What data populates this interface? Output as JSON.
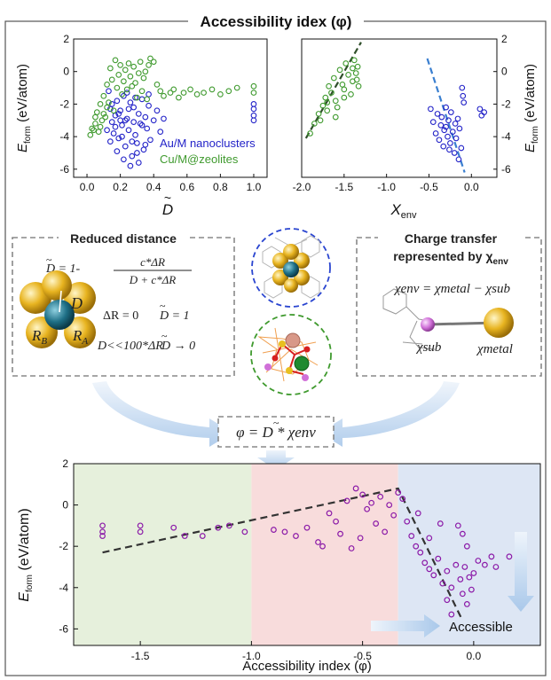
{
  "title": "Accessibility idex (φ)",
  "top_left": {
    "ylabel": "E",
    "ylabel_sub": "form",
    "ylabel_unit": "(eV/atom)",
    "xlabel": "D",
    "xticks": [
      "0.0",
      "0.2",
      "0.4",
      "0.6",
      "0.8",
      "1.0"
    ],
    "yticks": [
      "2",
      "0",
      "-2",
      "-4",
      "-6"
    ],
    "legend_au": "Au/M nanoclusters",
    "legend_cu": "Cu/M@zeolites"
  },
  "top_right": {
    "ylabel": "E",
    "ylabel_sub": "form",
    "ylabel_unit": "(eV/atom)",
    "xlabel": "X",
    "xlabel_sub": "env",
    "xticks": [
      "-2.0",
      "-1.5",
      "-1.0",
      "-0.5",
      "0.0"
    ],
    "yticks": [
      "2",
      "0",
      "-2",
      "-4",
      "-6"
    ]
  },
  "reduced_distance": {
    "title": "Reduced distance",
    "formula_lhs": "D = 1-",
    "formula_num": "c*ΔR",
    "formula_den": "D + c*ΔR",
    "eq1_left": "ΔR = 0",
    "eq1_right": "D = 1",
    "eq2_left": "D<<100*ΔR",
    "eq2_right": "D → 0",
    "label_D": "D",
    "label_RB": "R",
    "label_RB_sub": "B",
    "label_RA": "R",
    "label_RA_sub": "A"
  },
  "charge_transfer": {
    "title_line1": "Charge transfer",
    "title_line2": "represented by χ",
    "title_sub": "env",
    "eq": "χenv = χmetal − χsub",
    "label_sub": "χsub",
    "label_metal": "χmetal"
  },
  "phi_formula": "φ = D * χenv",
  "bottom": {
    "ylabel": "E",
    "ylabel_sub": "form",
    "ylabel_unit": "(eV/atom)",
    "xlabel": "Accessibility index (φ)",
    "xticks": [
      "-1.5",
      "-1.0",
      "-0.5",
      "0.0"
    ],
    "yticks": [
      "2",
      "0",
      "-2",
      "-4",
      "-6"
    ],
    "accessible": "Accessible"
  },
  "colors": {
    "blue": "#2323c8",
    "green": "#3f9a2e",
    "purple": "#8b1aa8",
    "zone_green": "#e6f0dc",
    "zone_red": "#f8dcdc",
    "zone_blue": "#dde6f4",
    "gold": "#e8b420",
    "teal": "#1e6f86",
    "pink": "#d070d8",
    "dash_border": "#888888"
  },
  "chart_data": [
    {
      "type": "scatter",
      "xlabel": "D̃",
      "ylabel": "E_form (eV/atom)",
      "xlim": [
        -0.08,
        1.08
      ],
      "ylim": [
        -6.5,
        2
      ],
      "series": [
        {
          "name": "Au/M nanoclusters",
          "points": [
            [
              0.13,
              -1.2
            ],
            [
              0.14,
              -2.3
            ],
            [
              0.15,
              -3.1
            ],
            [
              0.16,
              -3.8
            ],
            [
              0.17,
              -2.7
            ],
            [
              0.18,
              -1.8
            ],
            [
              0.19,
              -4.1
            ],
            [
              0.2,
              -2.4
            ],
            [
              0.21,
              -3.3
            ],
            [
              0.22,
              -1.5
            ],
            [
              0.23,
              -4.6
            ],
            [
              0.24,
              -2.9
            ],
            [
              0.25,
              -3.6
            ],
            [
              0.26,
              -1.9
            ],
            [
              0.27,
              -5.2
            ],
            [
              0.28,
              -2.2
            ],
            [
              0.29,
              -3.9
            ],
            [
              0.3,
              -4.4
            ],
            [
              0.31,
              -2.6
            ],
            [
              0.32,
              -3.2
            ],
            [
              0.33,
              -1.7
            ],
            [
              0.34,
              -4.8
            ],
            [
              0.35,
              -2.8
            ],
            [
              0.36,
              -3.5
            ],
            [
              0.37,
              -2.1
            ],
            [
              0.38,
              -4.2
            ],
            [
              0.4,
              -3.0
            ],
            [
              0.42,
              -2.4
            ],
            [
              0.44,
              -3.7
            ],
            [
              0.46,
              -2.9
            ],
            [
              0.15,
              -2.0
            ],
            [
              0.17,
              -3.4
            ],
            [
              0.19,
              -2.6
            ],
            [
              0.21,
              -4.0
            ],
            [
              0.23,
              -3.0
            ],
            [
              0.25,
              -2.3
            ],
            [
              0.27,
              -4.3
            ],
            [
              0.29,
              -1.6
            ],
            [
              0.31,
              -5.6
            ],
            [
              0.33,
              -3.3
            ],
            [
              0.35,
              -4.5
            ],
            [
              0.37,
              -1.4
            ],
            [
              0.12,
              -3.6
            ],
            [
              0.14,
              -4.3
            ],
            [
              0.18,
              -4.9
            ],
            [
              0.22,
              -5.4
            ],
            [
              0.26,
              -5.8
            ],
            [
              0.3,
              -5.0
            ],
            [
              0.28,
              -3.1
            ],
            [
              0.24,
              -1.3
            ],
            [
              0.2,
              -3.0
            ],
            [
              1.0,
              -2.3
            ],
            [
              1.0,
              -2.7
            ],
            [
              1.0,
              -3.0
            ],
            [
              1.0,
              -2.0
            ]
          ]
        },
        {
          "name": "Cu/M@zeolites",
          "points": [
            [
              0.02,
              -3.9
            ],
            [
              0.03,
              -3.5
            ],
            [
              0.05,
              -3.2
            ],
            [
              0.06,
              -2.5
            ],
            [
              0.07,
              -3.7
            ],
            [
              0.08,
              -2.0
            ],
            [
              0.09,
              -3.0
            ],
            [
              0.1,
              -1.5
            ],
            [
              0.11,
              -2.8
            ],
            [
              0.12,
              -0.8
            ],
            [
              0.13,
              -1.9
            ],
            [
              0.14,
              0.2
            ],
            [
              0.15,
              -0.5
            ],
            [
              0.16,
              -2.4
            ],
            [
              0.17,
              0.7
            ],
            [
              0.18,
              -1.0
            ],
            [
              0.19,
              -0.2
            ],
            [
              0.2,
              0.4
            ],
            [
              0.21,
              -1.4
            ],
            [
              0.22,
              -0.6
            ],
            [
              0.23,
              0.1
            ],
            [
              0.24,
              -1.1
            ],
            [
              0.25,
              0.5
            ],
            [
              0.26,
              -0.3
            ],
            [
              0.27,
              -0.9
            ],
            [
              0.28,
              0.3
            ],
            [
              0.29,
              -0.7
            ],
            [
              0.3,
              -1.6
            ],
            [
              0.31,
              -0.1
            ],
            [
              0.32,
              0.6
            ],
            [
              0.33,
              -1.2
            ],
            [
              0.34,
              -0.4
            ],
            [
              0.35,
              0.0
            ],
            [
              0.36,
              -1.7
            ],
            [
              0.37,
              0.4
            ],
            [
              0.38,
              0.8
            ],
            [
              0.4,
              0.6
            ],
            [
              0.42,
              -0.8
            ],
            [
              0.44,
              -1.2
            ],
            [
              0.46,
              -1.5
            ],
            [
              0.5,
              -1.3
            ],
            [
              0.52,
              -1.1
            ],
            [
              0.55,
              -1.6
            ],
            [
              0.58,
              -1.3
            ],
            [
              0.62,
              -1.1
            ],
            [
              0.66,
              -1.4
            ],
            [
              0.7,
              -1.3
            ],
            [
              0.75,
              -1.1
            ],
            [
              0.8,
              -1.4
            ],
            [
              0.85,
              -1.2
            ],
            [
              0.9,
              -1.0
            ],
            [
              0.12,
              -2.2
            ],
            [
              0.08,
              -3.4
            ],
            [
              0.05,
              -2.8
            ],
            [
              0.04,
              -3.6
            ],
            [
              0.1,
              -2.6
            ],
            [
              1.0,
              -0.9
            ],
            [
              1.0,
              -1.3
            ]
          ]
        }
      ]
    },
    {
      "type": "scatter",
      "xlabel": "χenv",
      "ylabel": "E_form (eV/atom)",
      "xlim": [
        -2.0,
        0.3
      ],
      "ylim": [
        -6.5,
        2
      ],
      "series": [
        {
          "name": "Cu/M@zeolites",
          "points": [
            [
              -1.9,
              -3.8
            ],
            [
              -1.85,
              -3.2
            ],
            [
              -1.8,
              -2.6
            ],
            [
              -1.78,
              -3.0
            ],
            [
              -1.75,
              -2.1
            ],
            [
              -1.72,
              -1.6
            ],
            [
              -1.7,
              -2.4
            ],
            [
              -1.68,
              -0.9
            ],
            [
              -1.65,
              -1.3
            ],
            [
              -1.62,
              -0.4
            ],
            [
              -1.6,
              -1.8
            ],
            [
              -1.58,
              -2.2
            ],
            [
              -1.55,
              0.1
            ],
            [
              -1.52,
              -0.8
            ],
            [
              -1.5,
              -1.1
            ],
            [
              -1.48,
              0.5
            ],
            [
              -1.45,
              -0.2
            ],
            [
              -1.42,
              -1.4
            ],
            [
              -1.4,
              -0.6
            ],
            [
              -1.38,
              0.7
            ],
            [
              -1.36,
              -0.1
            ],
            [
              -1.35,
              -0.5
            ],
            [
              -1.34,
              0.3
            ],
            [
              -1.33,
              -0.9
            ],
            [
              -1.7,
              -1.9
            ],
            [
              -1.6,
              -2.8
            ],
            [
              -1.5,
              -1.6
            ],
            [
              -1.4,
              0.2
            ]
          ]
        },
        {
          "name": "Au/M nanoclusters",
          "points": [
            [
              -0.48,
              -2.3
            ],
            [
              -0.45,
              -3.1
            ],
            [
              -0.42,
              -3.8
            ],
            [
              -0.4,
              -2.6
            ],
            [
              -0.38,
              -4.2
            ],
            [
              -0.36,
              -3.3
            ],
            [
              -0.35,
              -2.8
            ],
            [
              -0.33,
              -4.6
            ],
            [
              -0.32,
              -3.6
            ],
            [
              -0.3,
              -2.2
            ],
            [
              -0.28,
              -4.0
            ],
            [
              -0.27,
              -3.0
            ],
            [
              -0.25,
              -4.4
            ],
            [
              -0.24,
              -2.5
            ],
            [
              -0.22,
              -3.7
            ],
            [
              -0.2,
              -5.0
            ],
            [
              -0.19,
              -3.2
            ],
            [
              -0.18,
              -4.1
            ],
            [
              -0.16,
              -2.9
            ],
            [
              -0.15,
              -5.4
            ],
            [
              -0.14,
              -3.5
            ],
            [
              -0.12,
              -4.7
            ],
            [
              -0.11,
              -1.0
            ],
            [
              -0.1,
              -1.5
            ],
            [
              -0.09,
              -1.9
            ],
            [
              0.1,
              -2.3
            ],
            [
              0.12,
              -2.7
            ],
            [
              0.15,
              -2.5
            ],
            [
              -0.3,
              -3.4
            ],
            [
              -0.26,
              -4.8
            ]
          ]
        }
      ]
    },
    {
      "type": "scatter",
      "xlabel": "Accessibility index (φ)",
      "ylabel": "E_form (eV/atom)",
      "xlim": [
        -1.8,
        0.3
      ],
      "ylim": [
        -6.8,
        2
      ],
      "series": [
        {
          "name": "",
          "points": [
            [
              -1.67,
              -1.0
            ],
            [
              -1.67,
              -1.3
            ],
            [
              -1.67,
              -1.5
            ],
            [
              -1.5,
              -1.0
            ],
            [
              -1.5,
              -1.3
            ],
            [
              -1.35,
              -1.1
            ],
            [
              -1.3,
              -1.5
            ],
            [
              -1.22,
              -1.5
            ],
            [
              -1.15,
              -1.1
            ],
            [
              -1.1,
              -1.0
            ],
            [
              -1.03,
              -1.3
            ],
            [
              -0.9,
              -1.2
            ],
            [
              -0.85,
              -1.3
            ],
            [
              -0.8,
              -1.5
            ],
            [
              -0.75,
              -1.1
            ],
            [
              -0.7,
              -1.8
            ],
            [
              -0.68,
              -2.0
            ],
            [
              -0.65,
              -0.4
            ],
            [
              -0.62,
              -0.8
            ],
            [
              -0.6,
              -1.4
            ],
            [
              -0.57,
              0.2
            ],
            [
              -0.55,
              -2.1
            ],
            [
              -0.53,
              0.8
            ],
            [
              -0.51,
              -1.6
            ],
            [
              -0.5,
              0.5
            ],
            [
              -0.48,
              -0.2
            ],
            [
              -0.46,
              0.1
            ],
            [
              -0.44,
              -0.9
            ],
            [
              -0.42,
              0.4
            ],
            [
              -0.4,
              -1.3
            ],
            [
              -0.38,
              0.0
            ],
            [
              -0.36,
              -0.5
            ],
            [
              -0.34,
              0.6
            ],
            [
              -0.32,
              0.3
            ],
            [
              -0.3,
              -0.8
            ],
            [
              -0.28,
              -1.5
            ],
            [
              -0.26,
              -2.0
            ],
            [
              -0.24,
              -2.3
            ],
            [
              -0.22,
              -2.8
            ],
            [
              -0.2,
              -3.1
            ],
            [
              -0.18,
              -3.4
            ],
            [
              -0.16,
              -2.6
            ],
            [
              -0.14,
              -3.8
            ],
            [
              -0.12,
              -3.2
            ],
            [
              -0.1,
              -4.0
            ],
            [
              -0.08,
              -2.9
            ],
            [
              -0.06,
              -3.6
            ],
            [
              -0.05,
              -4.3
            ],
            [
              -0.04,
              -3.0
            ],
            [
              -0.03,
              -4.8
            ],
            [
              -0.02,
              -3.5
            ],
            [
              -0.01,
              -4.1
            ],
            [
              0.0,
              -3.3
            ],
            [
              0.02,
              -2.7
            ],
            [
              0.05,
              -2.9
            ],
            [
              0.08,
              -2.5
            ],
            [
              0.1,
              -3.0
            ],
            [
              0.16,
              -2.5
            ],
            [
              -0.07,
              -1.0
            ],
            [
              -0.05,
              -1.4
            ],
            [
              -0.03,
              -2.0
            ],
            [
              -0.15,
              -0.9
            ],
            [
              -0.2,
              -1.6
            ],
            [
              -0.25,
              -0.4
            ],
            [
              -0.1,
              -5.3
            ],
            [
              -0.12,
              -4.6
            ]
          ]
        }
      ]
    }
  ]
}
